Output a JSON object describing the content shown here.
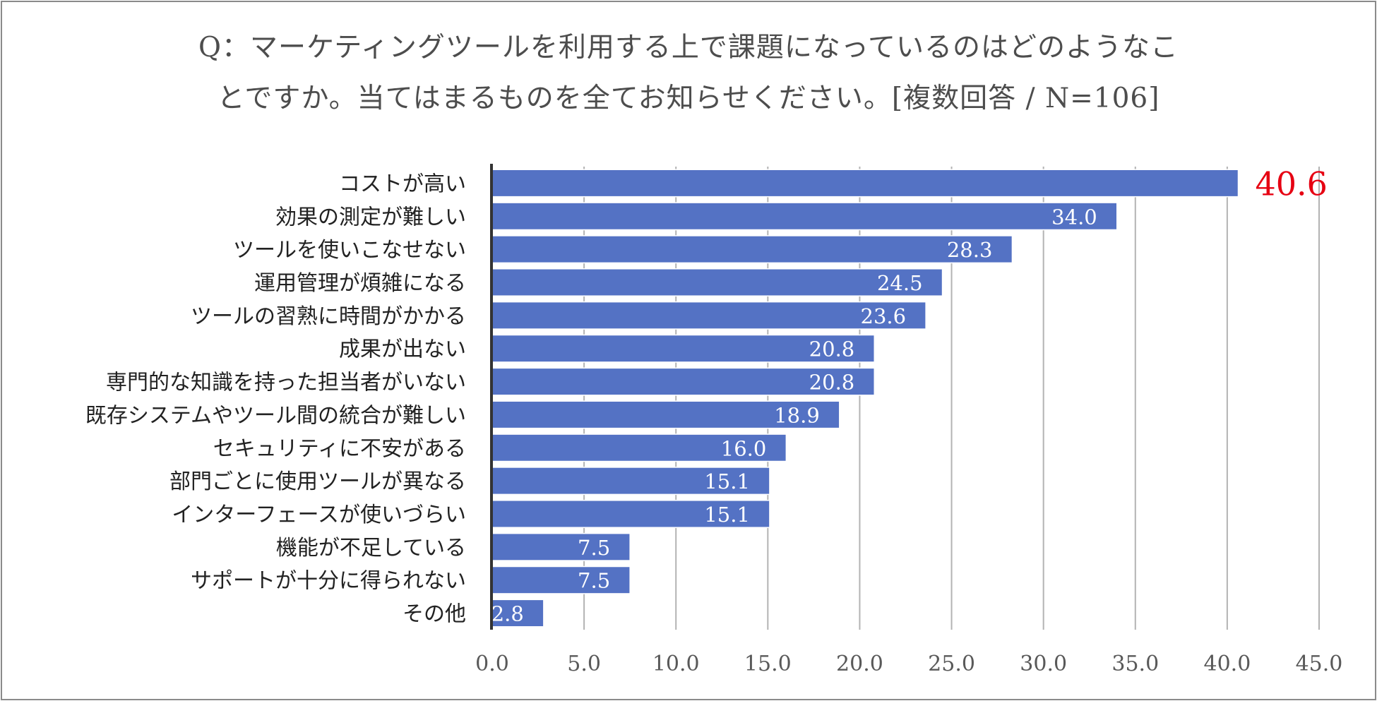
{
  "chart_data": {
    "type": "bar",
    "orientation": "horizontal",
    "title_lines": [
      "Q：マーケティングツールを利用する上で課題になっているのはどのようなこ",
      "とですか。当てはまるものを全てお知らせください。[複数回答 / N=106]"
    ],
    "categories": [
      "コストが高い",
      "効果の測定が難しい",
      "ツールを使いこなせない",
      "運用管理が煩雑になる",
      "ツールの習熟に時間がかかる",
      "成果が出ない",
      "専門的な知識を持った担当者がいない",
      "既存システムやツール間の統合が難しい",
      "セキュリティに不安がある",
      "部門ごとに使用ツールが異なる",
      "インターフェースが使いづらい",
      "機能が不足している",
      "サポートが十分に得られない",
      "その他"
    ],
    "values": [
      40.6,
      34.0,
      28.3,
      24.5,
      23.6,
      20.8,
      20.8,
      18.9,
      16.0,
      15.1,
      15.1,
      7.5,
      7.5,
      2.8
    ],
    "value_labels": [
      "40.6",
      "34.0",
      "28.3",
      "24.5",
      "23.6",
      "20.8",
      "20.8",
      "18.9",
      "16.0",
      "15.1",
      "15.1",
      "7.5",
      "7.5",
      "2.8"
    ],
    "xlim": [
      0,
      45
    ],
    "xticks": [
      "0.0",
      "5.0",
      "10.0",
      "15.0",
      "20.0",
      "25.0",
      "30.0",
      "35.0",
      "40.0",
      "45.0"
    ],
    "grid": "vertical",
    "legend": "none",
    "colors": {
      "bar": "#5472c4",
      "bar_border": "#ffffff",
      "highlight_label": "#e60012",
      "inner_label": "#ffffff",
      "grid": "#b3b3b3",
      "axis": "#333333",
      "text": "#222222",
      "tick_text": "#595959"
    },
    "highlight_index": 0
  }
}
